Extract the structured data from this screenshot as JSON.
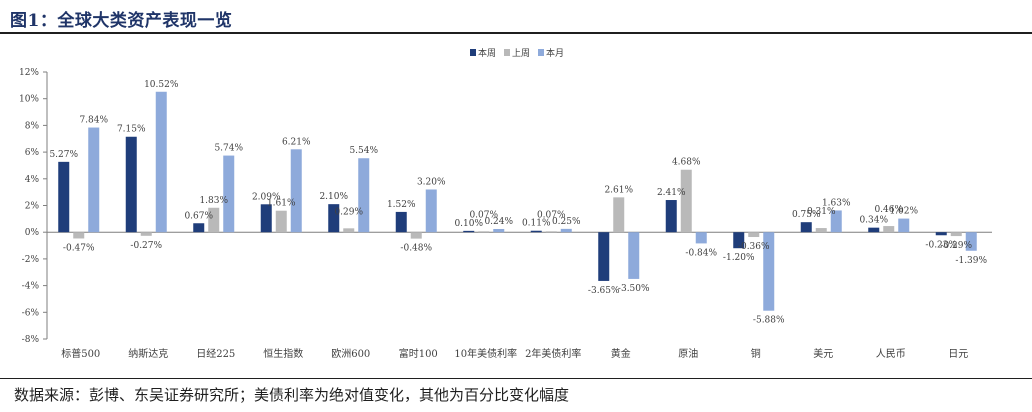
{
  "header": {
    "title": "图1：全球大类资产表现一览"
  },
  "footer": {
    "source": "数据来源：彭博、东吴证券研究所；美债利率为绝对值变化，其他为百分比变化幅度"
  },
  "colors": {
    "series_week": "#1f3d7a",
    "series_prev_week": "#b9b9b9",
    "series_month": "#8eaadb",
    "axis": "#7f7f7f",
    "text": "#404040"
  },
  "chart_data": {
    "type": "bar",
    "title": "",
    "xlabel": "",
    "ylabel": "",
    "ylim": [
      -8,
      12
    ],
    "yticks": [
      -8,
      -6,
      -4,
      -2,
      0,
      2,
      4,
      6,
      8,
      10,
      12
    ],
    "ytick_labels": [
      "-8%",
      "-6%",
      "-4%",
      "-2%",
      "0%",
      "2%",
      "4%",
      "6%",
      "8%",
      "10%",
      "12%"
    ],
    "legend_position": "top-center",
    "categories": [
      "标普500",
      "纳斯达克",
      "日经225",
      "恒生指数",
      "欧洲600",
      "富时100",
      "10年美债利率",
      "2年美债利率",
      "黄金",
      "原油",
      "铜",
      "美元",
      "人民币",
      "日元"
    ],
    "series": [
      {
        "name": "本周",
        "values": [
          5.27,
          7.15,
          0.67,
          2.09,
          2.1,
          1.52,
          0.1,
          0.11,
          -3.65,
          2.41,
          -1.2,
          0.75,
          0.34,
          -0.23
        ],
        "labels": [
          "5.27%",
          "7.15%",
          "0.67%",
          "2.09%",
          "2.10%",
          "1.52%",
          "0.10%",
          "0.11%",
          "-3.65%",
          "2.41%",
          "-1.20%",
          "0.75%",
          "0.34%",
          "-0.23%"
        ]
      },
      {
        "name": "上周",
        "values": [
          -0.47,
          -0.27,
          1.83,
          1.61,
          0.29,
          -0.48,
          0.07,
          0.07,
          2.61,
          4.68,
          -0.36,
          0.31,
          0.46,
          -0.29
        ],
        "labels": [
          "-0.47%",
          "-0.27%",
          "1.83%",
          "1.61%",
          "0.29%",
          "-0.48%",
          "0.07%",
          "0.07%",
          "2.61%",
          "4.68%",
          "-0.36%",
          "0.31%",
          "0.46%",
          "-0.29%"
        ]
      },
      {
        "name": "本月",
        "values": [
          7.84,
          10.52,
          5.74,
          6.21,
          5.54,
          3.2,
          0.24,
          0.25,
          -3.5,
          -0.84,
          -5.88,
          1.63,
          1.02,
          -1.39
        ],
        "labels": [
          "7.84%",
          "10.52%",
          "5.74%",
          "6.21%",
          "5.54%",
          "3.20%",
          "0.24%",
          "0.25%",
          "-3.50%",
          "-0.84%",
          "-5.88%",
          "1.63%",
          "1.02%",
          "-1.39%"
        ]
      }
    ]
  }
}
